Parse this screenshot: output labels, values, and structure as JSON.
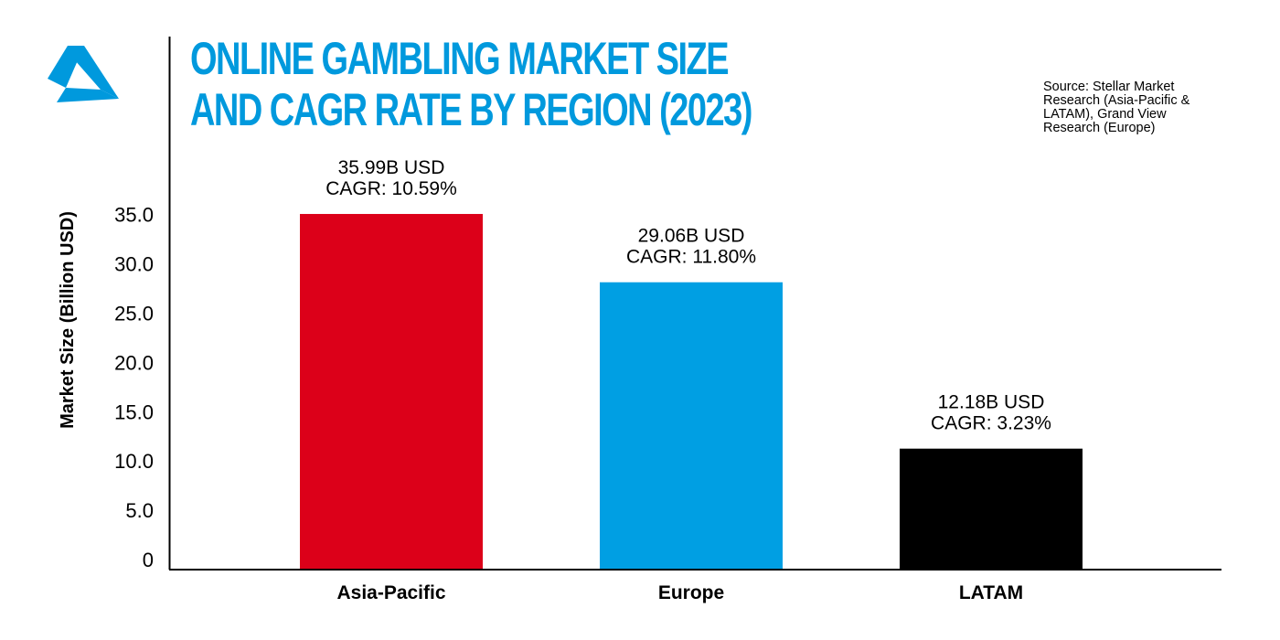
{
  "title_lines": [
    "ONLINE GAMBLING MARKET SIZE",
    "AND CAGR RATE BY REGION (2023)"
  ],
  "source_text": "Source: Stellar Market Research (Asia-Pacific & LATAM), Grand View Research (Europe)",
  "logo": {
    "icon": "stylized-a-logo-icon",
    "color": "#0099dd"
  },
  "chart_data": {
    "type": "bar",
    "title": "ONLINE GAMBLING MARKET SIZE AND CAGR RATE BY REGION (2023)",
    "xlabel": "",
    "ylabel": "Market Size (Billion USD)",
    "categories": [
      "Asia-Pacific",
      "Europe",
      "LATAM"
    ],
    "values": [
      35.99,
      29.06,
      12.18
    ],
    "data_labels": [
      [
        "35.99B USD",
        "CAGR: 10.59%"
      ],
      [
        "29.06B USD",
        "CAGR: 11.80%"
      ],
      [
        "12.18B USD",
        "CAGR: 3.23%"
      ]
    ],
    "colors": [
      "#dc0019",
      "#009fe3",
      "#000000"
    ],
    "yticks": [
      "0",
      "5.0",
      "10.0",
      "15.0",
      "20.0",
      "25.0",
      "30.0",
      "35.0"
    ],
    "ylim": [
      0,
      38
    ],
    "grid": false,
    "legend": "none"
  }
}
